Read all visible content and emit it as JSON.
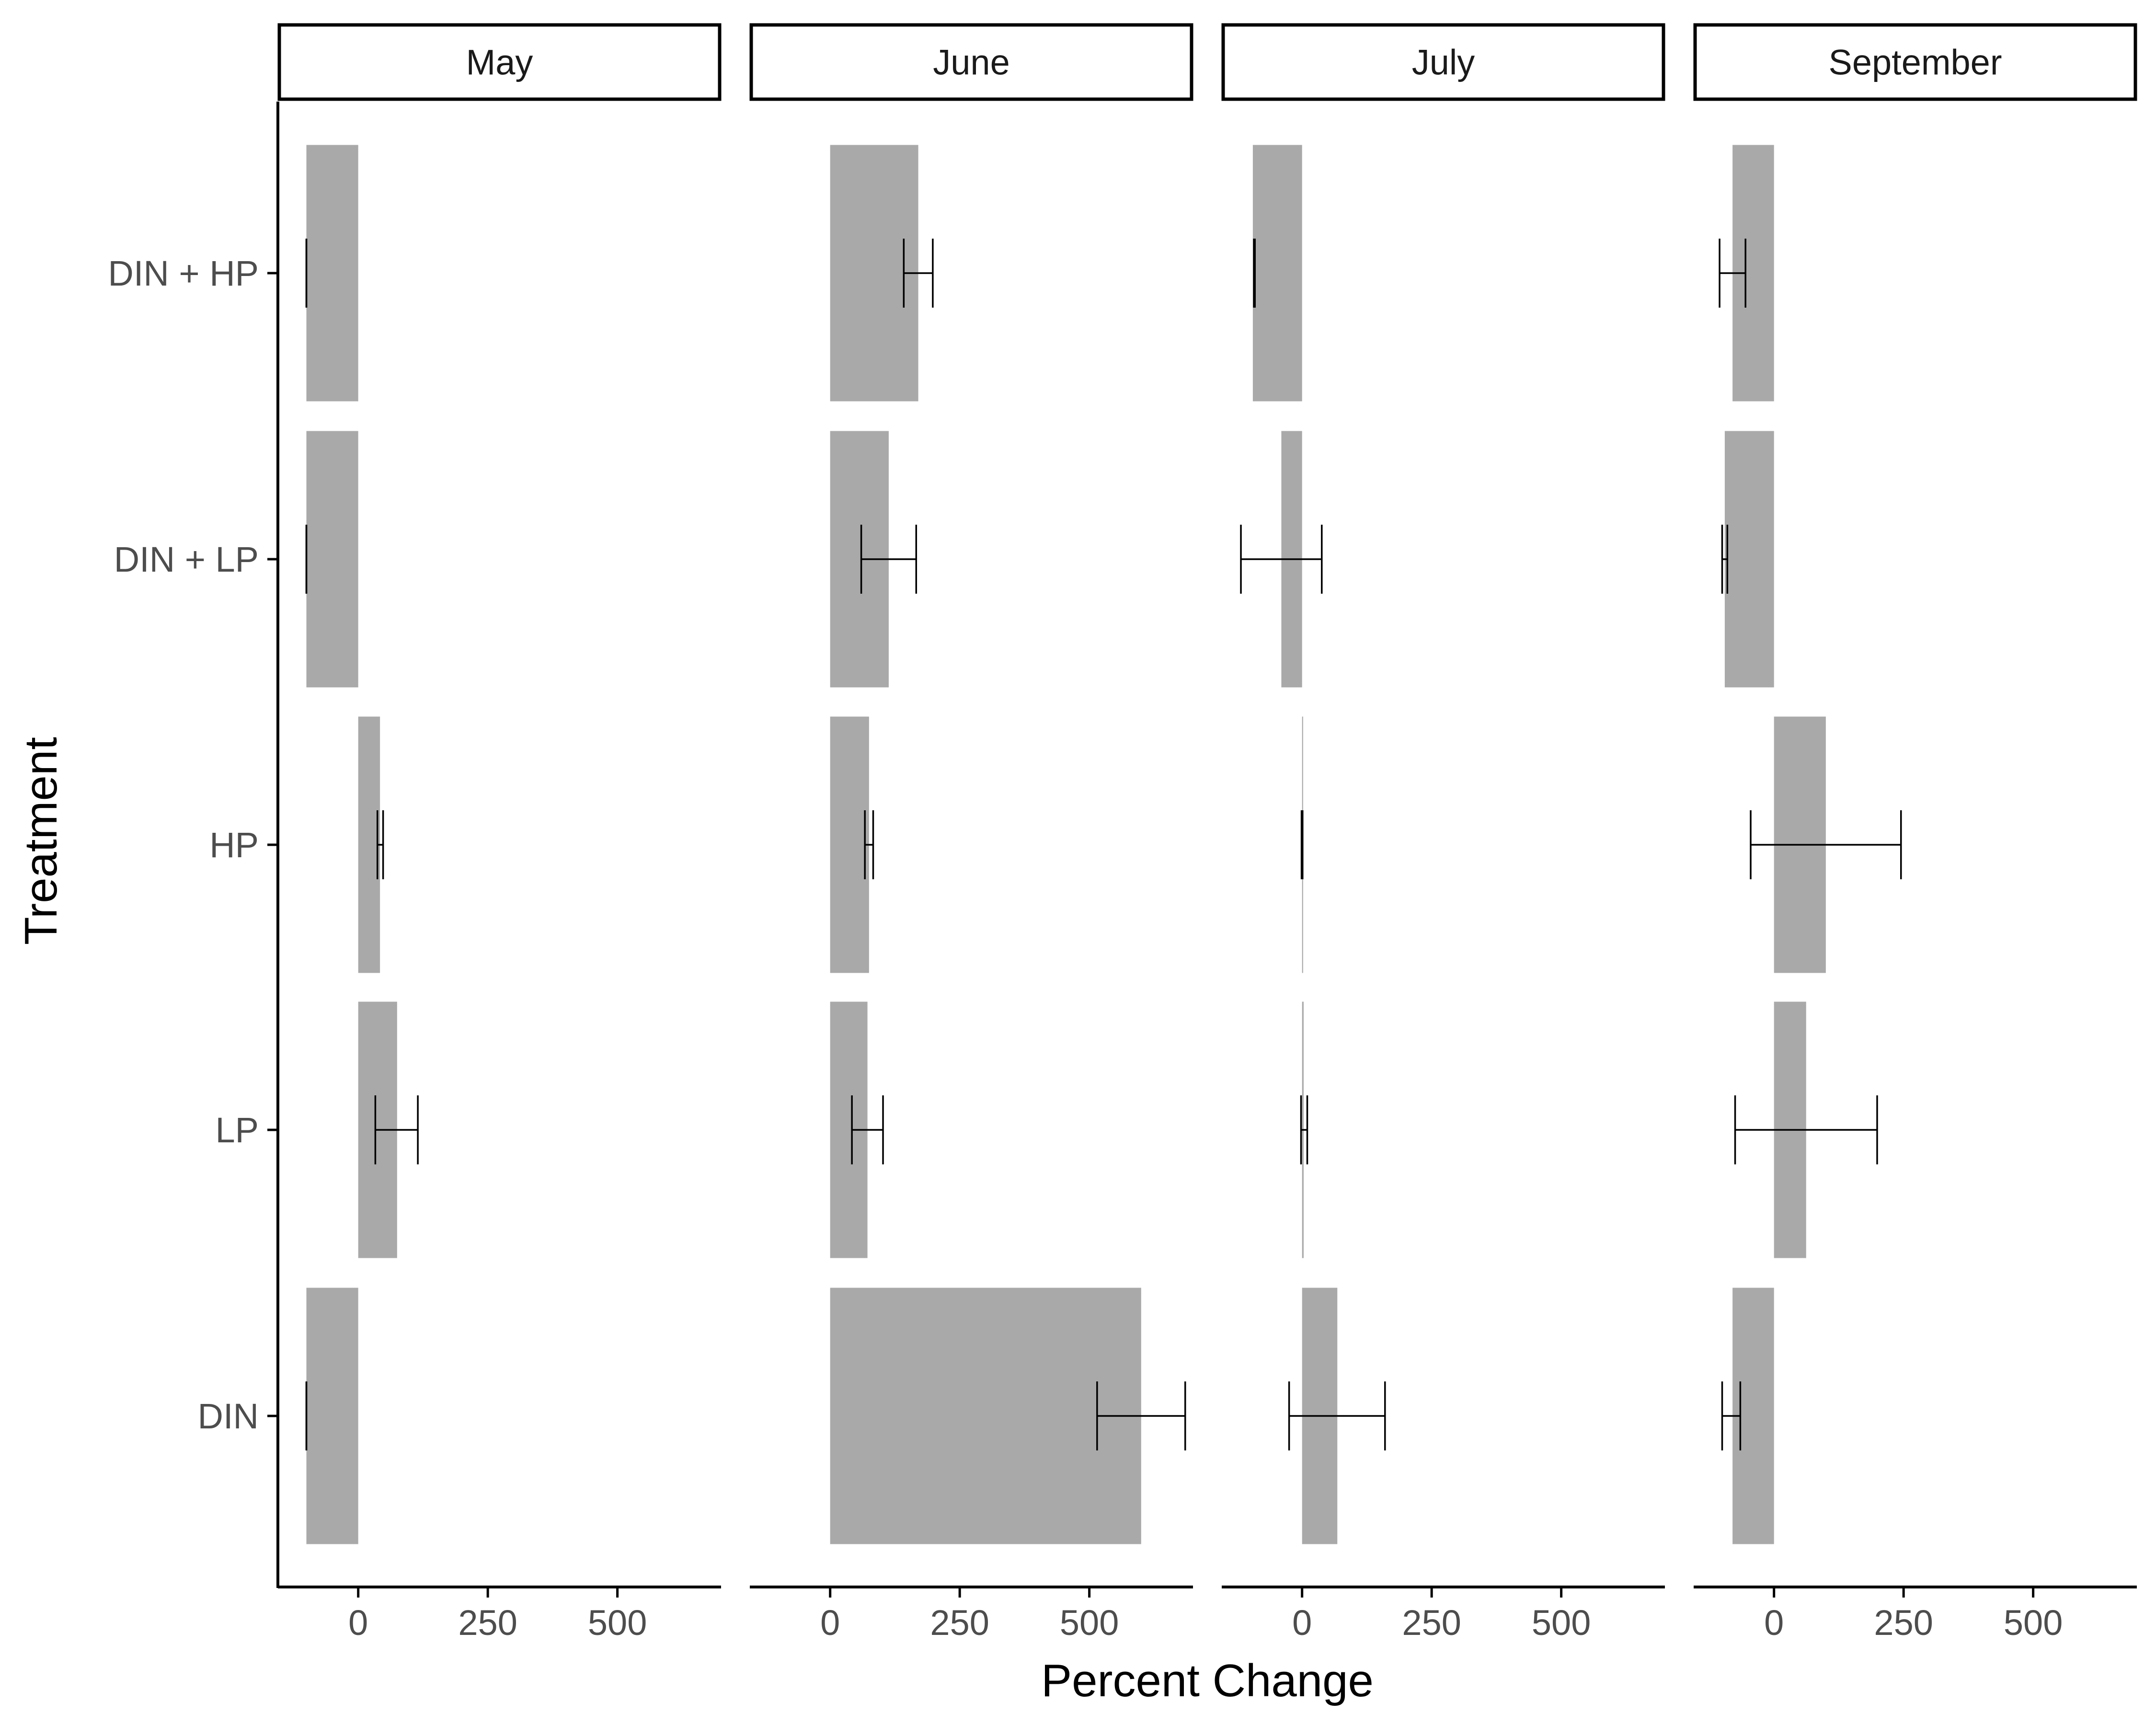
{
  "chart_data": {
    "type": "bar",
    "orientation": "horizontal",
    "facets": [
      "May",
      "June",
      "July",
      "September"
    ],
    "categories": [
      "DIN + HP",
      "DIN + LP",
      "HP",
      "LP",
      "DIN"
    ],
    "xlabel": "Percent Change",
    "ylabel": "Treatment",
    "xlim": [
      -155,
      700
    ],
    "xticks": [
      0,
      250,
      500
    ],
    "xtick_labels": [
      "0",
      "250",
      "500"
    ],
    "grid": false,
    "legend": "none",
    "panels": [
      {
        "facet": "May",
        "bars": [
          {
            "category": "DIN + HP",
            "value": -100,
            "err_low": -100,
            "err_high": -100
          },
          {
            "category": "DIN + LP",
            "value": -100,
            "err_low": -100,
            "err_high": -100
          },
          {
            "category": "HP",
            "value": 42,
            "err_low": 37,
            "err_high": 48
          },
          {
            "category": "LP",
            "value": 75,
            "err_low": 33,
            "err_high": 115
          },
          {
            "category": "DIN",
            "value": -100,
            "err_low": -100,
            "err_high": -100
          }
        ]
      },
      {
        "facet": "June",
        "bars": [
          {
            "category": "DIN + HP",
            "value": 170,
            "err_low": 142,
            "err_high": 198
          },
          {
            "category": "DIN + LP",
            "value": 113,
            "err_low": 60,
            "err_high": 166
          },
          {
            "category": "HP",
            "value": 75,
            "err_low": 67,
            "err_high": 83
          },
          {
            "category": "LP",
            "value": 72,
            "err_low": 42,
            "err_high": 102
          },
          {
            "category": "DIN",
            "value": 600,
            "err_low": 515,
            "err_high": 685
          }
        ]
      },
      {
        "facet": "July",
        "bars": [
          {
            "category": "DIN + HP",
            "value": -95,
            "err_low": -93,
            "err_high": -91
          },
          {
            "category": "DIN + LP",
            "value": -40,
            "err_low": -118,
            "err_high": 38
          },
          {
            "category": "HP",
            "value": 2,
            "err_low": -1,
            "err_high": 1
          },
          {
            "category": "LP",
            "value": 3,
            "err_low": -2,
            "err_high": 10
          },
          {
            "category": "DIN",
            "value": 68,
            "err_low": -25,
            "err_high": 160
          }
        ]
      },
      {
        "facet": "September",
        "bars": [
          {
            "category": "DIN + HP",
            "value": -80,
            "err_low": -105,
            "err_high": -55
          },
          {
            "category": "DIN + LP",
            "value": -95,
            "err_low": -100,
            "err_high": -90
          },
          {
            "category": "HP",
            "value": 100,
            "err_low": -45,
            "err_high": 245
          },
          {
            "category": "LP",
            "value": 62,
            "err_low": -75,
            "err_high": 199
          },
          {
            "category": "DIN",
            "value": -80,
            "err_low": -100,
            "err_high": -65
          }
        ]
      }
    ],
    "colors": {
      "bar": "#a9a9a9",
      "errorbar": "#000000",
      "axis": "#000000",
      "strip_fill": "#ffffff",
      "strip_border": "#000000"
    }
  }
}
